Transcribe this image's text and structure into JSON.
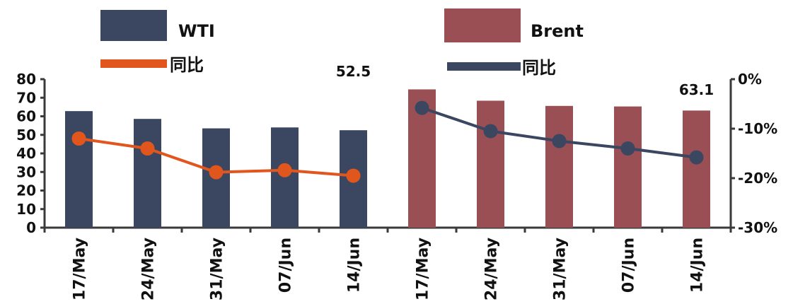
{
  "chart_data": {
    "type": "bar",
    "categories": [
      "17/May",
      "24/May",
      "31/May",
      "07/Jun",
      "14/Jun",
      "17/May",
      "24/May",
      "31/May",
      "07/Jun",
      "14/Jun"
    ],
    "series": [
      {
        "name": "WTI",
        "kind": "bar",
        "axis": "left",
        "color": "#3b4761",
        "values": [
          62.8,
          58.6,
          53.5,
          54.0,
          52.5,
          null,
          null,
          null,
          null,
          null
        ]
      },
      {
        "name": "Brent",
        "kind": "bar",
        "axis": "left",
        "color": "#9a4f55",
        "values": [
          null,
          null,
          null,
          null,
          null,
          74.5,
          68.4,
          65.6,
          65.3,
          63.1
        ]
      },
      {
        "name": "同比",
        "kind": "line",
        "axis": "right",
        "color": "#e0561d",
        "values": [
          -12.0,
          -14.0,
          -18.8,
          -18.4,
          -19.5,
          null,
          null,
          null,
          null,
          null
        ]
      },
      {
        "name": "同比",
        "kind": "line",
        "axis": "right",
        "color": "#3b4761",
        "values": [
          null,
          null,
          null,
          null,
          null,
          -5.8,
          -10.5,
          -12.5,
          -14.0,
          -15.8
        ]
      }
    ],
    "data_labels": [
      {
        "series": "WTI",
        "text": "52.5"
      },
      {
        "series": "Brent",
        "text": "63.1"
      }
    ],
    "y_left": {
      "min": 0,
      "max": 80,
      "ticks": [
        "0",
        "10",
        "20",
        "30",
        "40",
        "50",
        "60",
        "70",
        "80"
      ]
    },
    "y_right": {
      "min": -30,
      "max": 0,
      "ticks": [
        "0%",
        "-10%",
        "-20%",
        "-30%"
      ]
    },
    "legend": [
      {
        "label": "WTI",
        "kind": "bar",
        "color": "#3b4761"
      },
      {
        "label": "Brent",
        "kind": "bar",
        "color": "#9a4f55"
      },
      {
        "label": "同比",
        "kind": "line",
        "color": "#e0561d"
      },
      {
        "label": "同比",
        "kind": "line",
        "color": "#3b4761"
      }
    ],
    "legend_position": "top",
    "grid": false
  }
}
